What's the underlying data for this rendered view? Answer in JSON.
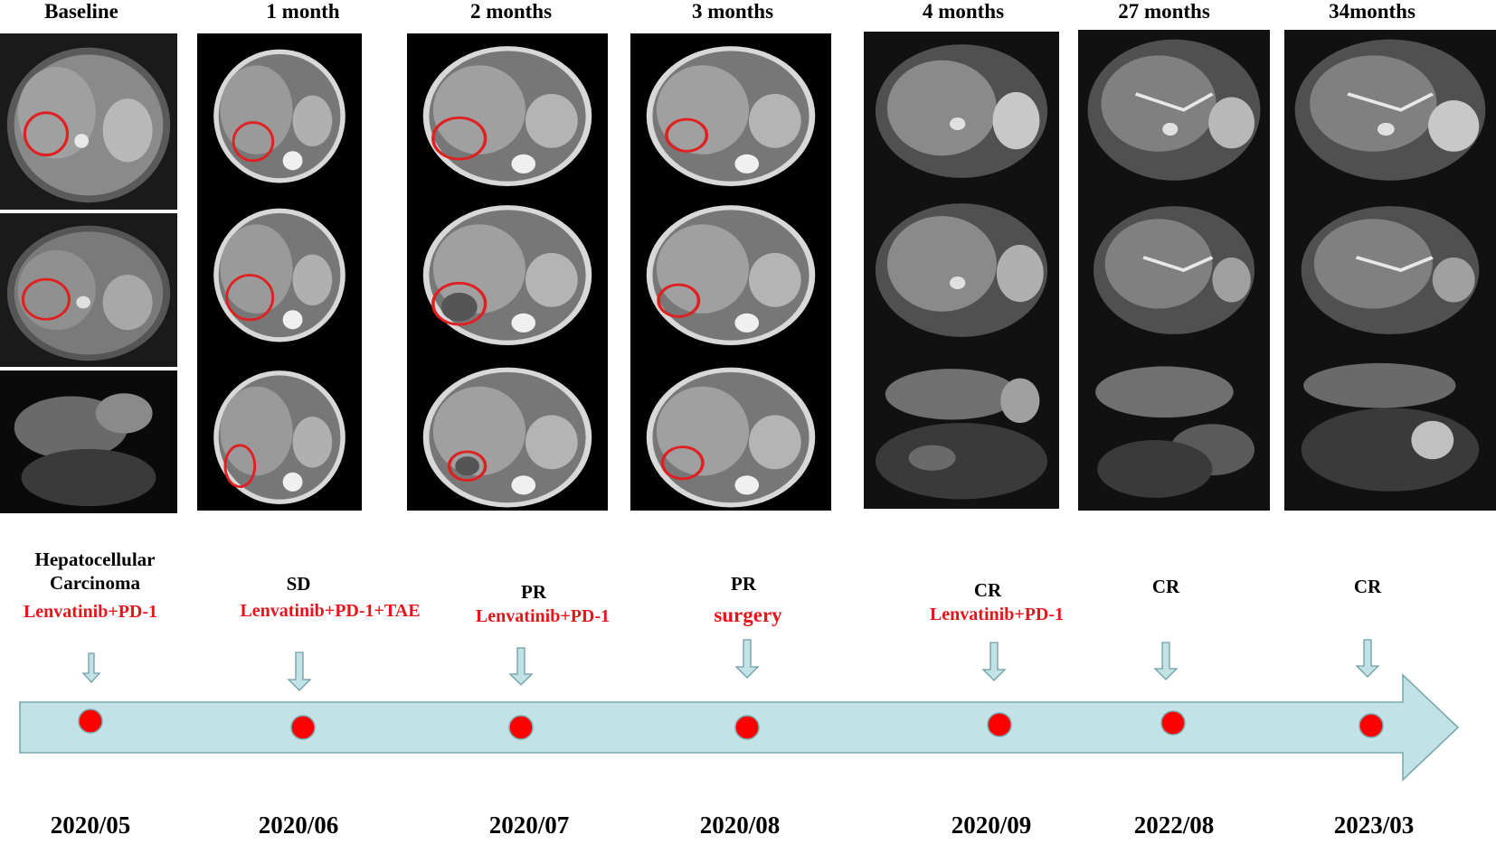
{
  "columns": [
    {
      "title": "Baseline",
      "response": "Hepatocellular Carcinoma",
      "treatment": "Lenvatinib+PD-1",
      "date": "2020/05"
    },
    {
      "title": "1 month",
      "response": "SD",
      "treatment": "Lenvatinib+PD-1+TAE",
      "date": "2020/06"
    },
    {
      "title": "2 months",
      "response": "PR",
      "treatment": "Lenvatinib+PD-1",
      "date": "2020/07"
    },
    {
      "title": "3 months",
      "response": "PR",
      "treatment": "surgery",
      "date": "2020/08"
    },
    {
      "title": "4 months",
      "response": "CR",
      "treatment": "Lenvatinib+PD-1",
      "date": "2020/09"
    },
    {
      "title": "27 months",
      "response": "CR",
      "treatment": "",
      "date": "2022/08"
    },
    {
      "title": "34months",
      "response": "CR",
      "treatment": "",
      "date": "2023/03"
    }
  ],
  "colors": {
    "arrow_fill": "#c3e2e6",
    "arrow_stroke": "#7aa9b0",
    "dot": "#ff0000",
    "lesion_circle": "#e02020",
    "treatment_text": "#e8141c"
  },
  "icons": {
    "down_arrow": "down-arrow-icon",
    "timeline_dot": "timepoint-dot-icon",
    "scan": "ct-mri-slice"
  }
}
